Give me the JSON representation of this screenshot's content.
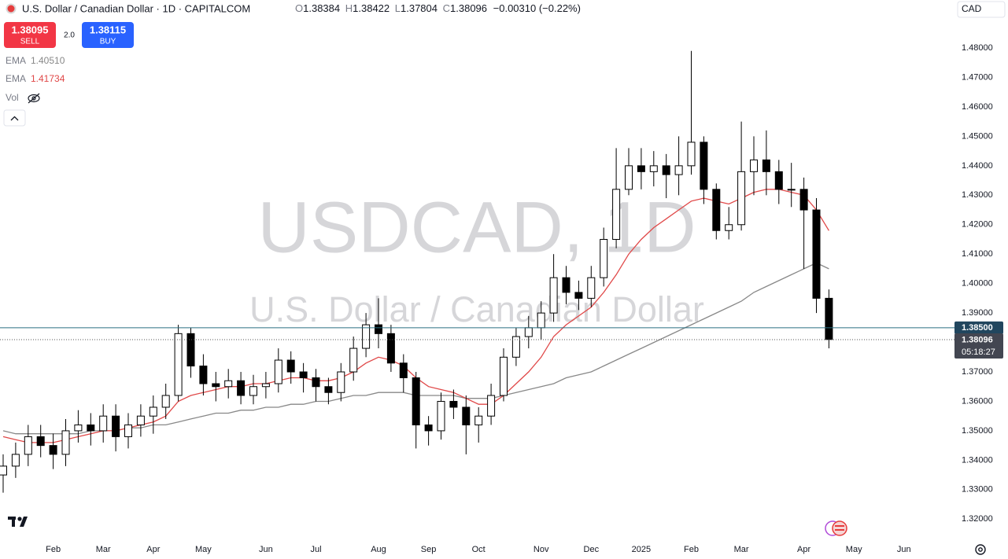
{
  "header": {
    "symbol": "U.S. Dollar / Canadian Dollar · 1D · CAPITALCOM",
    "ohlc": [
      {
        "key": "O",
        "value": "1.38384"
      },
      {
        "key": "H",
        "value": "1.38422"
      },
      {
        "key": "L",
        "value": "1.37804"
      },
      {
        "key": "C",
        "value": "1.38096"
      }
    ],
    "change": "−0.00310 (−0.22%)",
    "sell": {
      "price": "1.38095",
      "label": "SELL"
    },
    "spread": "2.0",
    "buy": {
      "price": "1.38115",
      "label": "BUY"
    },
    "volume": "Vol",
    "currency": "CAD"
  },
  "chart_data": {
    "type": "candlestick",
    "watermark": {
      "symbol": "USDCAD, 1D",
      "name": "U.S. Dollar / Canadian Dollar"
    },
    "up_color": "#ffffff",
    "down_color": "#000000",
    "wick_color": "#000000",
    "categories": [
      null,
      null,
      null,
      null,
      "Feb",
      null,
      null,
      null,
      "Mar",
      null,
      null,
      null,
      "Apr",
      null,
      null,
      null,
      "May",
      null,
      null,
      null,
      null,
      "Jun",
      null,
      null,
      null,
      "Jul",
      null,
      null,
      null,
      null,
      "Aug",
      null,
      null,
      null,
      "Sep",
      null,
      null,
      null,
      "Oct",
      null,
      null,
      null,
      null,
      "Nov",
      null,
      null,
      null,
      "Dec",
      null,
      null,
      null,
      "2025",
      null,
      null,
      null,
      "Feb",
      null,
      null,
      null,
      "Mar",
      null,
      null,
      null,
      null,
      "Apr",
      null,
      null,
      null,
      "May",
      null,
      null,
      null,
      "Jun",
      null,
      null,
      null
    ],
    "open": [
      1.335,
      1.338,
      1.342,
      1.348,
      1.345,
      1.342,
      1.35,
      1.352,
      1.35,
      1.355,
      1.348,
      1.352,
      1.355,
      1.358,
      1.362,
      1.383,
      1.372,
      1.366,
      1.365,
      1.367,
      1.362,
      1.365,
      1.366,
      1.374,
      1.37,
      1.368,
      1.365,
      1.363,
      1.37,
      1.378,
      1.386,
      1.383,
      1.373,
      1.368,
      1.352,
      1.35,
      1.36,
      1.358,
      1.352,
      1.355,
      1.362,
      1.375,
      1.382,
      1.385,
      1.39,
      1.402,
      1.397,
      1.395,
      1.402,
      1.415,
      1.432,
      1.44,
      1.438,
      1.44,
      1.437,
      1.44,
      1.448,
      1.432,
      1.418,
      1.42,
      1.438,
      1.442,
      1.438,
      1.432,
      1.432,
      1.425,
      1.395,
      null,
      null,
      null,
      null,
      null,
      null,
      null,
      null,
      null
    ],
    "high": [
      1.342,
      1.346,
      1.352,
      1.352,
      1.349,
      1.354,
      1.357,
      1.356,
      1.359,
      1.359,
      1.356,
      1.359,
      1.362,
      1.366,
      1.386,
      1.385,
      1.376,
      1.37,
      1.371,
      1.37,
      1.369,
      1.37,
      1.378,
      1.377,
      1.373,
      1.371,
      1.368,
      1.373,
      1.382,
      1.39,
      1.395,
      1.386,
      1.376,
      1.37,
      1.355,
      1.363,
      1.364,
      1.362,
      1.358,
      1.366,
      1.378,
      1.385,
      1.389,
      1.394,
      1.41,
      1.406,
      1.401,
      1.406,
      1.419,
      1.446,
      1.446,
      1.446,
      1.445,
      1.444,
      1.45,
      1.479,
      1.45,
      1.434,
      1.426,
      1.455,
      1.45,
      1.452,
      1.442,
      1.441,
      1.436,
      1.429,
      1.398,
      null,
      null,
      null,
      null,
      null,
      null,
      null,
      null,
      null
    ],
    "low": [
      1.329,
      1.334,
      1.338,
      1.341,
      1.337,
      1.338,
      1.346,
      1.345,
      1.346,
      1.343,
      1.344,
      1.348,
      1.349,
      1.354,
      1.36,
      1.368,
      1.362,
      1.36,
      1.361,
      1.359,
      1.359,
      1.361,
      1.363,
      1.366,
      1.363,
      1.36,
      1.359,
      1.36,
      1.367,
      1.375,
      1.378,
      1.37,
      1.363,
      1.344,
      1.345,
      1.347,
      1.354,
      1.342,
      1.346,
      1.352,
      1.36,
      1.372,
      1.378,
      1.381,
      1.387,
      1.393,
      1.391,
      1.392,
      1.399,
      1.412,
      1.43,
      1.432,
      1.433,
      1.429,
      1.43,
      1.437,
      1.427,
      1.415,
      1.415,
      1.418,
      1.43,
      1.43,
      1.427,
      1.426,
      1.405,
      1.39,
      1.378,
      null,
      null,
      null,
      null,
      null,
      null,
      null,
      null,
      null
    ],
    "close": [
      1.338,
      1.342,
      1.348,
      1.345,
      1.342,
      1.35,
      1.352,
      1.35,
      1.355,
      1.348,
      1.352,
      1.355,
      1.358,
      1.362,
      1.383,
      1.372,
      1.366,
      1.365,
      1.367,
      1.362,
      1.365,
      1.366,
      1.374,
      1.37,
      1.368,
      1.365,
      1.363,
      1.37,
      1.378,
      1.386,
      1.383,
      1.373,
      1.368,
      1.352,
      1.35,
      1.36,
      1.358,
      1.352,
      1.355,
      1.362,
      1.375,
      1.382,
      1.385,
      1.39,
      1.402,
      1.397,
      1.395,
      1.402,
      1.415,
      1.432,
      1.44,
      1.438,
      1.44,
      1.437,
      1.44,
      1.448,
      1.432,
      1.418,
      1.42,
      1.438,
      1.442,
      1.438,
      1.432,
      1.432,
      1.425,
      1.395,
      1.381,
      null,
      null,
      null,
      null,
      null,
      null,
      null,
      null,
      null
    ],
    "series": [
      {
        "name": "EMA",
        "legend_value": "1.40510",
        "color": "#888888",
        "values": [
          1.35,
          1.349,
          1.349,
          1.349,
          1.349,
          1.349,
          1.349,
          1.35,
          1.35,
          1.35,
          1.351,
          1.351,
          1.352,
          1.352,
          1.353,
          1.354,
          1.355,
          1.356,
          1.356,
          1.357,
          1.357,
          1.358,
          1.358,
          1.359,
          1.359,
          1.36,
          1.36,
          1.361,
          1.362,
          1.362,
          1.363,
          1.363,
          1.363,
          1.362,
          1.362,
          1.362,
          1.362,
          1.361,
          1.361,
          1.361,
          1.362,
          1.363,
          1.364,
          1.365,
          1.366,
          1.368,
          1.369,
          1.37,
          1.372,
          1.374,
          1.376,
          1.378,
          1.38,
          1.382,
          1.384,
          1.386,
          1.388,
          1.39,
          1.392,
          1.394,
          1.397,
          1.399,
          1.401,
          1.403,
          1.405,
          1.407,
          1.405,
          null,
          null,
          null,
          null,
          null,
          null,
          null,
          null,
          null
        ]
      },
      {
        "name": "EMA",
        "legend_value": "1.41734",
        "color": "#e04848",
        "values": [
          1.348,
          1.347,
          1.346,
          1.346,
          1.346,
          1.347,
          1.348,
          1.349,
          1.35,
          1.35,
          1.351,
          1.352,
          1.353,
          1.355,
          1.36,
          1.362,
          1.363,
          1.364,
          1.365,
          1.365,
          1.366,
          1.366,
          1.367,
          1.368,
          1.368,
          1.367,
          1.367,
          1.368,
          1.37,
          1.373,
          1.375,
          1.374,
          1.372,
          1.368,
          1.365,
          1.364,
          1.363,
          1.361,
          1.359,
          1.359,
          1.362,
          1.366,
          1.37,
          1.375,
          1.382,
          1.386,
          1.389,
          1.392,
          1.397,
          1.403,
          1.41,
          1.415,
          1.419,
          1.422,
          1.425,
          1.428,
          1.429,
          1.428,
          1.427,
          1.429,
          1.431,
          1.432,
          1.432,
          1.431,
          1.43,
          1.425,
          1.418,
          null,
          null,
          null,
          null,
          null,
          null,
          null,
          null,
          null
        ]
      }
    ],
    "ylim": [
      1.3134,
      1.4963
    ],
    "yticks": [
      {
        "value": 1.32,
        "label": "1.32000"
      },
      {
        "value": 1.33,
        "label": "1.33000"
      },
      {
        "value": 1.34,
        "label": "1.34000"
      },
      {
        "value": 1.35,
        "label": "1.35000"
      },
      {
        "value": 1.36,
        "label": "1.36000"
      },
      {
        "value": 1.37,
        "label": "1.37000"
      },
      {
        "value": 1.38,
        "label": "1.38000"
      },
      {
        "value": 1.39,
        "label": "1.39000"
      },
      {
        "value": 1.4,
        "label": "1.40000"
      },
      {
        "value": 1.41,
        "label": "1.41000"
      },
      {
        "value": 1.42,
        "label": "1.42000"
      },
      {
        "value": 1.43,
        "label": "1.43000"
      },
      {
        "value": 1.44,
        "label": "1.44000"
      },
      {
        "value": 1.45,
        "label": "1.45000"
      },
      {
        "value": 1.46,
        "label": "1.46000"
      },
      {
        "value": 1.47,
        "label": "1.47000"
      },
      {
        "value": 1.48,
        "label": "1.48000"
      }
    ],
    "grid": false,
    "price_line": {
      "value": 1.385,
      "label": "1.38500",
      "color": "#2a6f82"
    },
    "last_price": {
      "value": 1.38096,
      "label": "1.38096",
      "countdown": "05:18:27",
      "color": "#434651"
    }
  }
}
